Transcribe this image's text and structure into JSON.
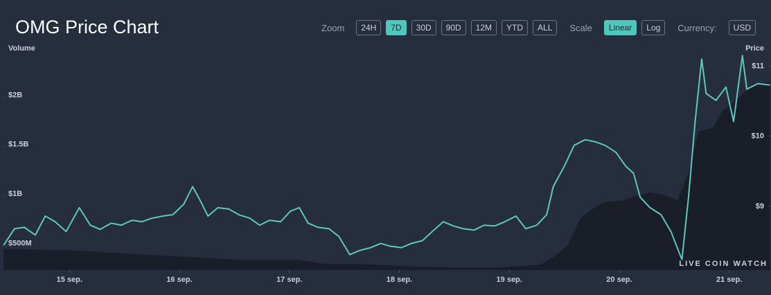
{
  "chart_data": {
    "type": "line",
    "title": "OMG Price Chart",
    "y_label": "Volume",
    "y2_label": "Price",
    "xlim": [
      14.4,
      21.38
    ],
    "xticks": [
      {
        "value": 15,
        "label": "15 sep."
      },
      {
        "value": 16,
        "label": "16 sep."
      },
      {
        "value": 17,
        "label": "17 sep."
      },
      {
        "value": 18,
        "label": "18 sep."
      },
      {
        "value": 19,
        "label": "19 sep."
      },
      {
        "value": 20,
        "label": "20 sep."
      },
      {
        "value": 21,
        "label": "21 sep."
      }
    ],
    "ylim": [
      250000000,
      2550000000
    ],
    "yticks": [
      {
        "value": 500000000,
        "label": "$500M"
      },
      {
        "value": 1000000000,
        "label": "$1B"
      },
      {
        "value": 1500000000,
        "label": "$1.5B"
      },
      {
        "value": 2000000000,
        "label": "$2B"
      }
    ],
    "y2lim": [
      8.09,
      11.33
    ],
    "y2ticks": [
      {
        "value": 9,
        "label": "$9"
      },
      {
        "value": 10,
        "label": "$10"
      },
      {
        "value": 11,
        "label": "$11"
      }
    ],
    "series": [
      {
        "name": "Volume",
        "kind": "area",
        "color": "#1a1e29",
        "x": [
          14.4,
          15.0,
          15.63,
          16.13,
          16.57,
          17.07,
          17.33,
          17.64,
          18.02,
          18.46,
          18.9,
          19.28,
          19.4,
          19.53,
          19.65,
          19.78,
          19.87,
          20.03,
          20.16,
          20.28,
          20.41,
          20.53,
          20.63,
          20.72,
          20.85,
          20.94,
          21.04,
          21.16,
          21.29,
          21.37
        ],
        "values": [
          465000000,
          451000000,
          409000000,
          381000000,
          353000000,
          353000000,
          311000000,
          311000000,
          290000000,
          276000000,
          276000000,
          304000000,
          381000000,
          500000000,
          780000000,
          885000000,
          941000000,
          955000000,
          1003000000,
          1038000000,
          1010000000,
          955000000,
          1234000000,
          1654000000,
          1689000000,
          1864000000,
          1948000000,
          2073000000,
          2143000000,
          2157000000
        ]
      },
      {
        "name": "Price",
        "kind": "line",
        "axis": "y2",
        "color": "#5cc9bf",
        "x": [
          14.4,
          14.5,
          14.59,
          14.69,
          14.78,
          14.87,
          14.97,
          15.09,
          15.19,
          15.28,
          15.38,
          15.47,
          15.57,
          15.66,
          15.75,
          15.85,
          15.94,
          16.04,
          16.12,
          16.19,
          16.26,
          16.35,
          16.45,
          16.54,
          16.64,
          16.73,
          16.82,
          16.92,
          17.01,
          17.09,
          17.17,
          17.26,
          17.36,
          17.45,
          17.55,
          17.64,
          17.74,
          17.83,
          17.92,
          18.02,
          18.11,
          18.21,
          18.3,
          18.4,
          18.49,
          18.58,
          18.68,
          18.77,
          18.87,
          18.96,
          19.06,
          19.15,
          19.25,
          19.34,
          19.4,
          19.5,
          19.59,
          19.69,
          19.78,
          19.87,
          19.97,
          20.06,
          20.13,
          20.19,
          20.28,
          20.38,
          20.47,
          20.57,
          20.63,
          20.69,
          20.75,
          20.79,
          20.88,
          20.97,
          21.04,
          21.12,
          21.16,
          21.26,
          21.37
        ],
        "values": [
          8.44,
          8.68,
          8.7,
          8.59,
          8.86,
          8.78,
          8.64,
          8.98,
          8.73,
          8.67,
          8.76,
          8.73,
          8.8,
          8.78,
          8.83,
          8.86,
          8.88,
          9.03,
          9.28,
          9.08,
          8.86,
          8.98,
          8.96,
          8.88,
          8.83,
          8.73,
          8.8,
          8.78,
          8.93,
          8.98,
          8.76,
          8.7,
          8.68,
          8.57,
          8.31,
          8.37,
          8.41,
          8.47,
          8.43,
          8.41,
          8.47,
          8.51,
          8.64,
          8.78,
          8.72,
          8.68,
          8.66,
          8.73,
          8.72,
          8.78,
          8.86,
          8.68,
          8.73,
          8.88,
          9.28,
          9.57,
          9.87,
          9.95,
          9.92,
          9.87,
          9.77,
          9.57,
          9.47,
          9.13,
          8.98,
          8.88,
          8.64,
          8.24,
          9.13,
          10.21,
          11.1,
          10.61,
          10.51,
          10.7,
          10.21,
          11.15,
          10.67,
          10.75,
          10.73
        ]
      }
    ],
    "watermark": "LIVE COIN WATCH"
  },
  "controls": {
    "zoom_label": "Zoom",
    "zoom": [
      "24H",
      "7D",
      "30D",
      "90D",
      "12M",
      "YTD",
      "ALL"
    ],
    "zoom_selected": 1,
    "scale_label": "Scale",
    "scale": [
      "Linear",
      "Log"
    ],
    "scale_selected": 0,
    "currency_label": "Currency:",
    "currency": "USD"
  }
}
